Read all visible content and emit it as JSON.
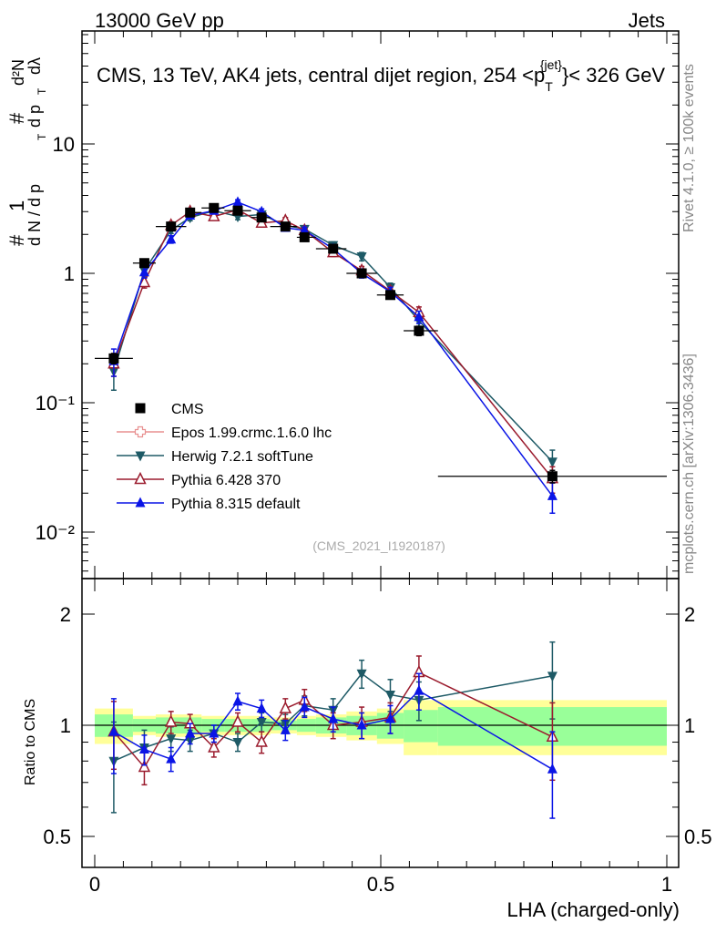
{
  "header": {
    "left": "13000 GeV pp",
    "right": "Jets",
    "plot_title": "CMS, 13 TeV, AK4 jets, central dijet region, 254 <p",
    "plot_title_sub": "T",
    "plot_title_sup": "{jet}",
    "plot_title_end": "}< 326 GeV"
  },
  "side_texts": {
    "rivet": "Rivet 4.1.0, ≥ 100k events",
    "mcplots": "mcplots.cern.ch [arXiv:1306.3436]"
  },
  "analysis_id": "(CMS_2021_I1920187)",
  "colors": {
    "cms": "#000000",
    "epos": "#e89090",
    "herwig": "#1e5a66",
    "pythia6": "#9b1c2e",
    "pythia8": "#0a14e6",
    "band_inner": "#99ff99",
    "band_outer": "#ffff99"
  },
  "chart_data": [
    {
      "type": "scatter",
      "panel": "main",
      "yscale": "log",
      "xlim": [
        0,
        1
      ],
      "ylim": [
        0.005,
        70
      ],
      "ylabel_parts": [
        "1",
        "#",
        "d N / d p",
        "T",
        "#",
        "d²N",
        "d p",
        "T",
        "dλ"
      ],
      "ytick_labels": {
        "0.01": "10⁻²",
        "0.1": "10⁻¹",
        "1": "1",
        "10": "10"
      },
      "x": [
        0.0333,
        0.0867,
        0.1333,
        0.1667,
        0.2083,
        0.25,
        0.2917,
        0.3333,
        0.3667,
        0.4167,
        0.4667,
        0.5167,
        0.5667,
        0.8
      ],
      "x_edges": [
        [
          0.0,
          0.0667
        ],
        [
          0.0667,
          0.1067
        ],
        [
          0.1067,
          0.16
        ],
        [
          0.16,
          0.1867
        ],
        [
          0.1867,
          0.2267
        ],
        [
          0.2267,
          0.2733
        ],
        [
          0.2733,
          0.3067
        ],
        [
          0.3067,
          0.3533
        ],
        [
          0.3533,
          0.3867
        ],
        [
          0.3867,
          0.44
        ],
        [
          0.44,
          0.4933
        ],
        [
          0.4933,
          0.54
        ],
        [
          0.54,
          0.6
        ],
        [
          0.6,
          1.0
        ]
      ],
      "series": [
        {
          "name": "CMS",
          "key": "cms",
          "marker": "square",
          "values": [
            0.22,
            1.2,
            2.3,
            2.95,
            3.2,
            3.05,
            2.7,
            2.3,
            1.9,
            1.55,
            1.0,
            0.68,
            0.36,
            0.027
          ],
          "errors": [
            0.02,
            0.08,
            0.1,
            0.1,
            0.1,
            0.1,
            0.1,
            0.1,
            0.08,
            0.06,
            0.05,
            0.04,
            0.03,
            0.003
          ]
        },
        {
          "name": "Epos 1.99.crmc.1.6.0 lhc",
          "key": "epos",
          "marker": "cross-open",
          "values": [],
          "errors": []
        },
        {
          "name": "Herwig 7.2.1 softTune",
          "key": "herwig",
          "marker": "triangle-down",
          "values": [
            0.175,
            1.05,
            2.15,
            2.7,
            3.05,
            2.75,
            2.85,
            2.35,
            2.2,
            1.65,
            1.35,
            0.78,
            0.43,
            0.035
          ],
          "errors": [
            0.05,
            0.1,
            0.12,
            0.15,
            0.15,
            0.15,
            0.15,
            0.12,
            0.12,
            0.1,
            0.1,
            0.06,
            0.05,
            0.008
          ]
        },
        {
          "name": "Pythia 6.428 370",
          "key": "pythia6",
          "marker": "triangle-open",
          "values": [
            0.2,
            0.85,
            2.35,
            3.0,
            2.75,
            3.1,
            2.45,
            2.55,
            2.15,
            1.45,
            1.05,
            0.73,
            0.5,
            0.026
          ],
          "errors": [
            0.04,
            0.08,
            0.15,
            0.15,
            0.15,
            0.15,
            0.15,
            0.15,
            0.12,
            0.1,
            0.08,
            0.06,
            0.05,
            0.006
          ]
        },
        {
          "name": "Pythia 8.315 default",
          "key": "pythia8",
          "marker": "triangle-up",
          "values": [
            0.21,
            1.02,
            1.83,
            2.8,
            3.05,
            3.55,
            3.0,
            2.25,
            2.15,
            1.55,
            1.0,
            0.72,
            0.46,
            0.019
          ],
          "errors": [
            0.05,
            0.1,
            0.12,
            0.15,
            0.15,
            0.15,
            0.15,
            0.12,
            0.12,
            0.1,
            0.08,
            0.06,
            0.05,
            0.005
          ]
        }
      ]
    },
    {
      "type": "scatter",
      "panel": "ratio",
      "yscale": "log",
      "xlim": [
        0,
        1
      ],
      "ylim": [
        0.42,
        2.5
      ],
      "ylabel": "Ratio to CMS",
      "ytick_labels": {
        "0.5": "0.5",
        "1": "1",
        "2": "2"
      },
      "xlabel": "LHA (charged-only)",
      "xtick_labels": {
        "0": "0",
        "0.5": "0.5",
        "1": "1"
      },
      "band_inner": [
        [
          0.93,
          1.07
        ],
        [
          0.96,
          1.04
        ],
        [
          0.95,
          1.05
        ],
        [
          0.95,
          1.05
        ],
        [
          0.96,
          1.04
        ],
        [
          0.96,
          1.04
        ],
        [
          0.96,
          1.04
        ],
        [
          0.97,
          1.03
        ],
        [
          0.96,
          1.04
        ],
        [
          0.95,
          1.05
        ],
        [
          0.94,
          1.06
        ],
        [
          0.92,
          1.08
        ],
        [
          0.9,
          1.1
        ],
        [
          0.88,
          1.12
        ]
      ],
      "band_outer": [
        [
          0.89,
          1.11
        ],
        [
          0.94,
          1.06
        ],
        [
          0.93,
          1.07
        ],
        [
          0.93,
          1.07
        ],
        [
          0.94,
          1.06
        ],
        [
          0.94,
          1.06
        ],
        [
          0.94,
          1.06
        ],
        [
          0.95,
          1.05
        ],
        [
          0.94,
          1.06
        ],
        [
          0.93,
          1.07
        ],
        [
          0.91,
          1.09
        ],
        [
          0.89,
          1.11
        ],
        [
          0.83,
          1.17
        ],
        [
          0.83,
          1.17
        ]
      ],
      "series": [
        {
          "key": "herwig",
          "marker": "triangle-down",
          "values": [
            0.8,
            0.87,
            0.92,
            0.91,
            0.95,
            0.9,
            1.02,
            1.01,
            1.13,
            1.1,
            1.38,
            1.21,
            1.17,
            1.36
          ],
          "errors": [
            0.22,
            0.1,
            0.07,
            0.06,
            0.05,
            0.05,
            0.06,
            0.06,
            0.07,
            0.08,
            0.12,
            0.12,
            0.14,
            0.32
          ]
        },
        {
          "key": "pythia6",
          "marker": "triangle-open",
          "values": [
            0.96,
            0.77,
            1.02,
            1.01,
            0.87,
            1.02,
            0.9,
            1.11,
            1.17,
            1.0,
            1.02,
            1.05,
            1.39,
            0.93
          ],
          "errors": [
            0.2,
            0.08,
            0.07,
            0.06,
            0.05,
            0.06,
            0.06,
            0.07,
            0.08,
            0.08,
            0.1,
            0.1,
            0.15,
            0.22
          ]
        },
        {
          "key": "pythia8",
          "marker": "triangle-up",
          "values": [
            0.96,
            0.86,
            0.81,
            0.95,
            0.95,
            1.16,
            1.11,
            0.97,
            1.12,
            1.04,
            1.0,
            1.04,
            1.24,
            0.76
          ],
          "errors": [
            0.22,
            0.08,
            0.06,
            0.06,
            0.05,
            0.06,
            0.06,
            0.06,
            0.07,
            0.08,
            0.08,
            0.09,
            0.14,
            0.2
          ]
        }
      ]
    }
  ]
}
